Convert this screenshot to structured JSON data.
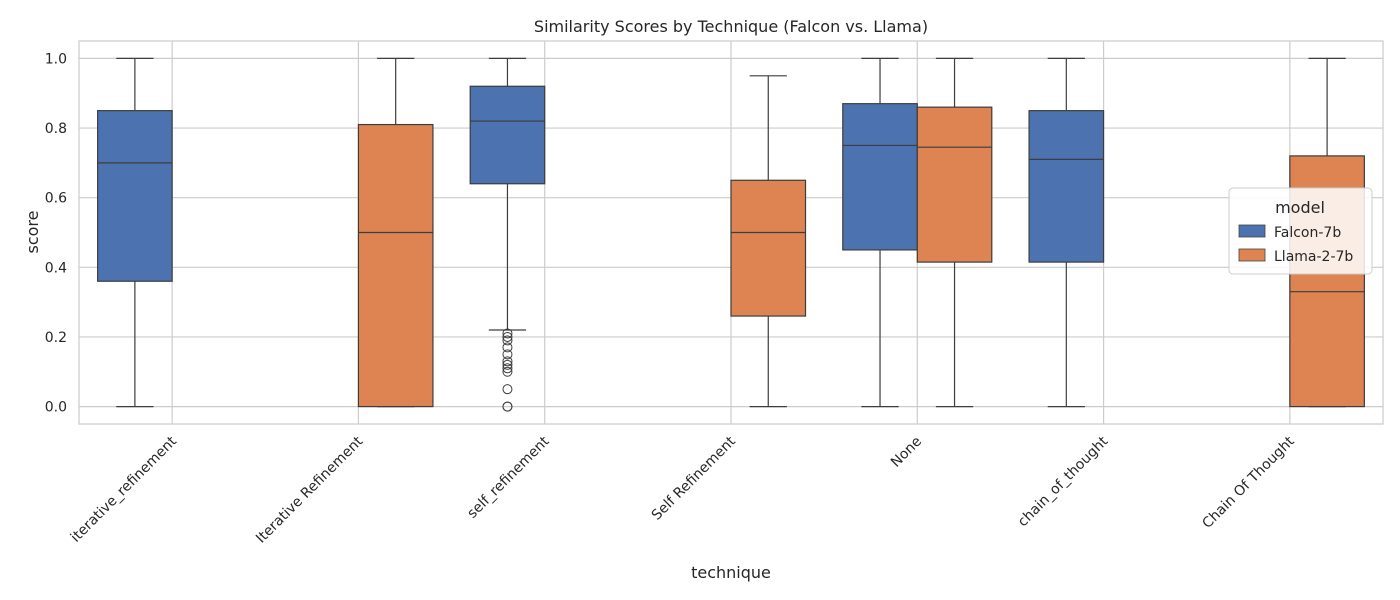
{
  "chart_data": {
    "type": "box",
    "title": "Similarity Scores by Technique (Falcon vs. Llama)",
    "xlabel": "technique",
    "ylabel": "score",
    "ylim": [
      -0.05,
      1.05
    ],
    "yticks": [
      0.0,
      0.2,
      0.4,
      0.6,
      0.8,
      1.0
    ],
    "ytick_labels": [
      "0.0",
      "0.2",
      "0.4",
      "0.6",
      "0.8",
      "1.0"
    ],
    "categories": [
      "iterative_refinement",
      "Iterative Refinement",
      "self_refinement",
      "Self Refinement",
      "None",
      "chain_of_thought",
      "Chain Of Thought"
    ],
    "grid": true,
    "legend": {
      "title": "model",
      "placement": "center-right",
      "entries": [
        "Falcon-7b",
        "Llama-2-7b"
      ]
    },
    "series": [
      {
        "name": "Falcon-7b",
        "color": "#4c72b0",
        "boxes": [
          {
            "category": "iterative_refinement",
            "whisker_low": 0.0,
            "q1": 0.36,
            "median": 0.7,
            "q3": 0.85,
            "whisker_high": 1.0,
            "outliers": []
          },
          {
            "category": "self_refinement",
            "whisker_low": 0.22,
            "q1": 0.64,
            "median": 0.82,
            "q3": 0.92,
            "whisker_high": 1.0,
            "outliers": [
              0.21,
              0.2,
              0.19,
              0.17,
              0.15,
              0.13,
              0.12,
              0.11,
              0.1,
              0.05,
              0.0,
              0.0
            ]
          },
          {
            "category": "None",
            "whisker_low": 0.0,
            "q1": 0.45,
            "median": 0.75,
            "q3": 0.87,
            "whisker_high": 1.0,
            "outliers": []
          },
          {
            "category": "chain_of_thought",
            "whisker_low": 0.0,
            "q1": 0.415,
            "median": 0.71,
            "q3": 0.85,
            "whisker_high": 1.0,
            "outliers": []
          }
        ]
      },
      {
        "name": "Llama-2-7b",
        "color": "#dd8452",
        "boxes": [
          {
            "category": "Iterative Refinement",
            "whisker_low": 0.0,
            "q1": 0.0,
            "median": 0.5,
            "q3": 0.81,
            "whisker_high": 1.0,
            "outliers": []
          },
          {
            "category": "Self Refinement",
            "whisker_low": 0.0,
            "q1": 0.26,
            "median": 0.5,
            "q3": 0.65,
            "whisker_high": 0.95,
            "outliers": []
          },
          {
            "category": "None",
            "whisker_low": 0.0,
            "q1": 0.415,
            "median": 0.745,
            "q3": 0.86,
            "whisker_high": 1.0,
            "outliers": []
          },
          {
            "category": "Chain Of Thought",
            "whisker_low": 0.0,
            "q1": 0.0,
            "median": 0.33,
            "q3": 0.72,
            "whisker_high": 1.0,
            "outliers": []
          }
        ]
      }
    ]
  }
}
